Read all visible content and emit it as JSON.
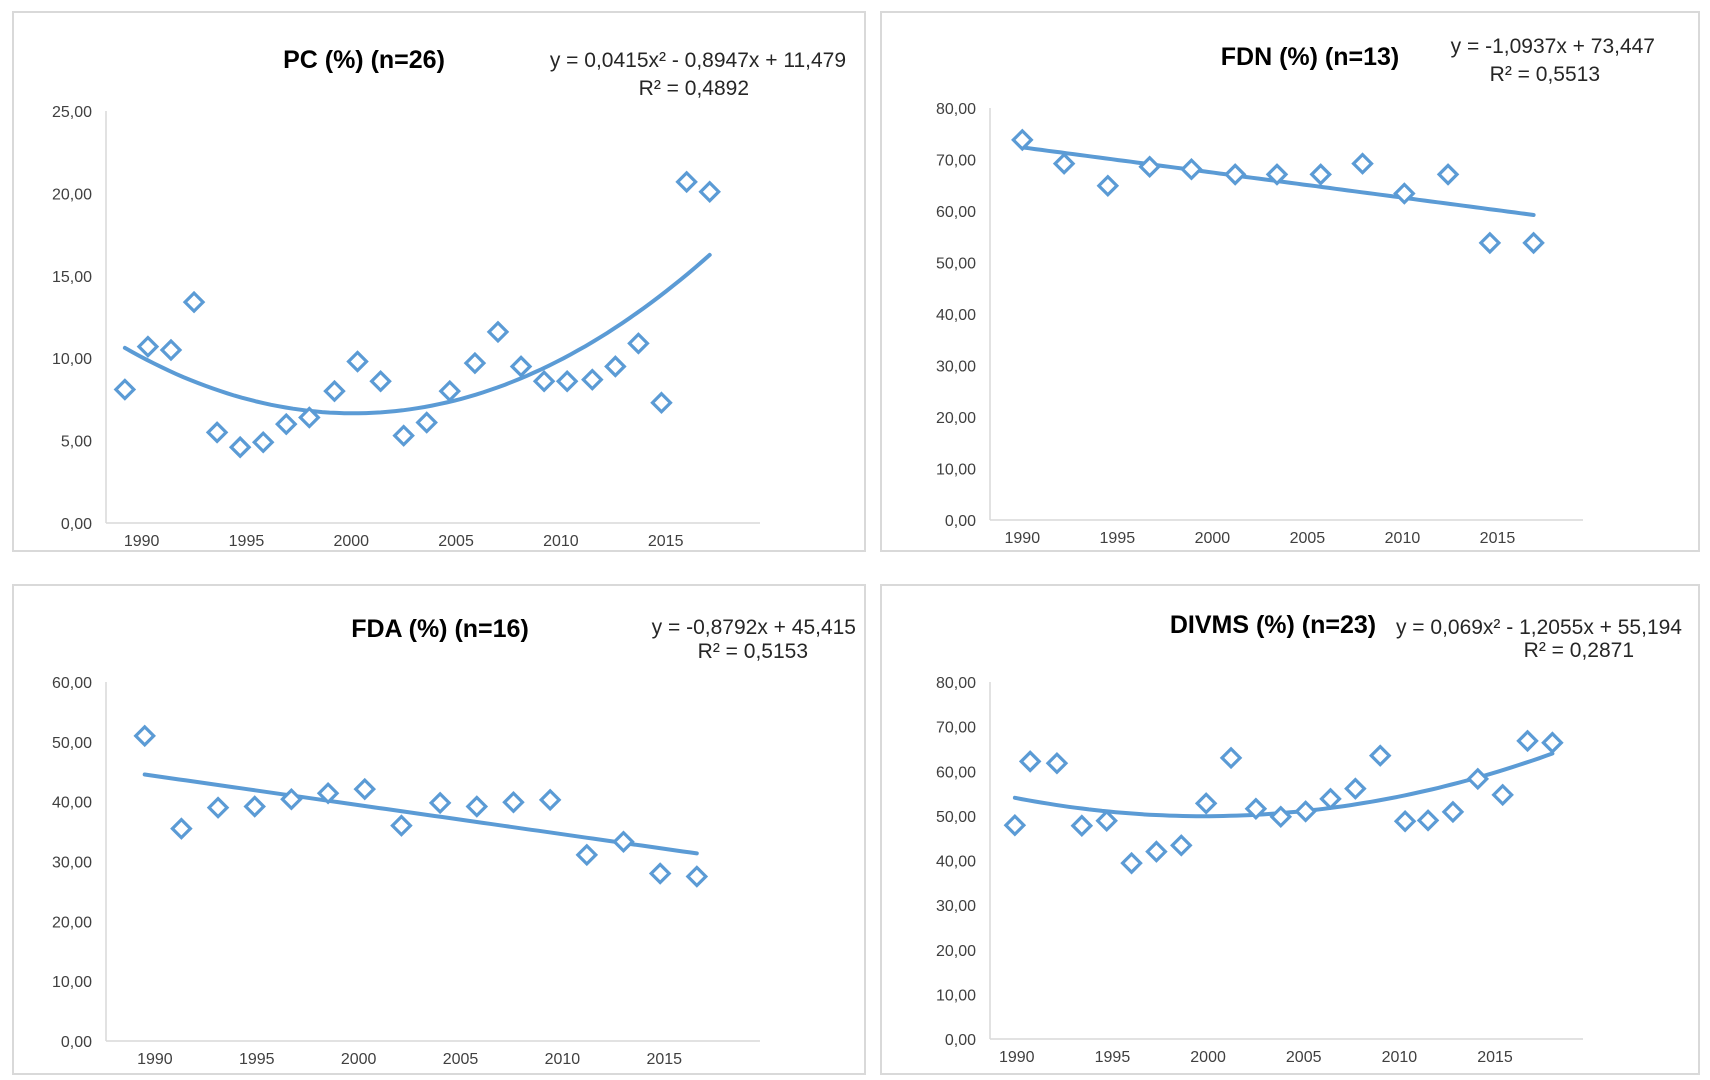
{
  "chart_data": [
    {
      "type": "scatter",
      "title": "PC (%) (n=26)",
      "equation": "y = 0,0415x² - 0,8947x + 11,479",
      "r2": "R² = 0,4892",
      "trend": {
        "kind": "poly2",
        "a": 0.0415,
        "b": -0.8947,
        "c": 11.479,
        "n": 26
      },
      "ylim": [
        0,
        25
      ],
      "yticks": [
        0,
        5,
        10,
        15,
        20,
        25
      ],
      "ytick_labels": [
        "0,00",
        "5,00",
        "10,00",
        "15,00",
        "20,00",
        "25,00"
      ],
      "xlim": [
        1988.3,
        2019.5
      ],
      "xticks": [
        1990,
        1995,
        2000,
        2005,
        2010,
        2015
      ],
      "xtick_labels": [
        "1990",
        "1995",
        "2000",
        "2005",
        "2010",
        "2015"
      ],
      "x": [
        1989.2,
        1990.3,
        1991.4,
        1992.5,
        1993.6,
        1994.7,
        1995.8,
        1996.9,
        1998.0,
        1999.2,
        2000.3,
        2001.4,
        2002.5,
        2003.6,
        2004.7,
        2005.9,
        2007.0,
        2008.1,
        2009.2,
        2010.3,
        2011.5,
        2012.6,
        2013.7,
        2014.8,
        2016.0,
        2017.1
      ],
      "y": [
        8.1,
        10.7,
        10.5,
        13.4,
        5.5,
        4.6,
        4.9,
        6.0,
        6.4,
        8.0,
        9.8,
        8.6,
        5.3,
        6.1,
        8.0,
        9.7,
        11.6,
        9.5,
        8.6,
        8.6,
        8.7,
        9.5,
        10.9,
        7.3,
        20.7,
        20.1
      ]
    },
    {
      "type": "scatter",
      "title": "FDN (%) (n=13)",
      "equation": "y = -1,0937x + 73,447",
      "r2": "R² = 0,5513",
      "trend": {
        "kind": "linear",
        "a": 0,
        "b": -1.0937,
        "c": 73.447,
        "n": 13
      },
      "ylim": [
        0,
        80
      ],
      "yticks": [
        0,
        10,
        20,
        30,
        40,
        50,
        60,
        70,
        80
      ],
      "ytick_labels": [
        "0,00",
        "10,00",
        "20,00",
        "30,00",
        "40,00",
        "50,00",
        "60,00",
        "70,00",
        "80,00"
      ],
      "xlim": [
        1988.3,
        2019.5
      ],
      "xticks": [
        1990,
        1995,
        2000,
        2005,
        2010,
        2015
      ],
      "xtick_labels": [
        "1990",
        "1995",
        "2000",
        "2005",
        "2010",
        "2015"
      ],
      "x": [
        1990.0,
        1992.2,
        1994.5,
        1996.7,
        1998.9,
        2001.2,
        2003.4,
        2005.7,
        2007.9,
        2010.1,
        2012.4,
        2014.6,
        2016.9
      ],
      "y": [
        73.8,
        69.2,
        64.9,
        68.6,
        68.1,
        67.1,
        67.1,
        67.1,
        69.2,
        63.4,
        67.1,
        53.8,
        53.8
      ]
    },
    {
      "type": "scatter",
      "title": "FDA (%) (n=16)",
      "equation": "y = -0,8792x + 45,415",
      "r2": "R² = 0,5153",
      "trend": {
        "kind": "linear",
        "a": 0,
        "b": -0.8792,
        "c": 45.415,
        "n": 16
      },
      "ylim": [
        0,
        60
      ],
      "yticks": [
        0,
        10,
        20,
        30,
        40,
        50,
        60
      ],
      "ytick_labels": [
        "0,00",
        "10,00",
        "20,00",
        "30,00",
        "40,00",
        "50,00",
        "60,00"
      ],
      "xlim": [
        1987.6,
        2019.7
      ],
      "xticks": [
        1990,
        1995,
        2000,
        2005,
        2010,
        2015
      ],
      "xtick_labels": [
        "1990",
        "1995",
        "2000",
        "2005",
        "2010",
        "2015"
      ],
      "x": [
        1989.5,
        1991.3,
        1993.1,
        1994.9,
        1996.7,
        1998.5,
        2000.3,
        2002.1,
        2004.0,
        2005.8,
        2007.6,
        2009.4,
        2011.2,
        2013.0,
        2014.8,
        2016.6
      ],
      "y": [
        51.0,
        35.5,
        39.0,
        39.2,
        40.4,
        41.4,
        42.1,
        36.0,
        39.8,
        39.2,
        39.9,
        40.3,
        31.1,
        33.3,
        28.0,
        27.5
      ]
    },
    {
      "type": "scatter",
      "title": "DIVMS (%) (n=23)",
      "equation": "y = 0,069x² - 1,2055x + 55,194",
      "r2": "R² = 0,2871",
      "trend": {
        "kind": "poly2",
        "a": 0.069,
        "b": -1.2055,
        "c": 55.194,
        "n": 23
      },
      "ylim": [
        0,
        80
      ],
      "yticks": [
        0,
        10,
        20,
        30,
        40,
        50,
        60,
        70,
        80
      ],
      "ytick_labels": [
        "0,00",
        "10,00",
        "20,00",
        "30,00",
        "40,00",
        "50,00",
        "60,00",
        "70,00",
        "80,00"
      ],
      "xlim": [
        1988.6,
        2019.6
      ],
      "xticks": [
        1990,
        1995,
        2000,
        2005,
        2010,
        2015
      ],
      "xtick_labels": [
        "1990",
        "1995",
        "2000",
        "2005",
        "2010",
        "2015"
      ],
      "x": [
        1989.9,
        1990.7,
        1992.1,
        1993.4,
        1994.7,
        1996.0,
        1997.3,
        1998.6,
        1999.9,
        2001.2,
        2002.5,
        2003.8,
        2005.1,
        2006.4,
        2007.7,
        2009.0,
        2010.3,
        2011.5,
        2012.8,
        2014.1,
        2015.4,
        2016.7,
        2018.0
      ],
      "y": [
        47.9,
        62.2,
        61.8,
        47.8,
        48.9,
        39.4,
        42.0,
        43.4,
        52.8,
        63.0,
        51.6,
        49.8,
        51.0,
        53.8,
        56.1,
        63.5,
        48.8,
        49.0,
        50.9,
        58.3,
        54.7,
        66.8,
        66.4
      ]
    }
  ]
}
